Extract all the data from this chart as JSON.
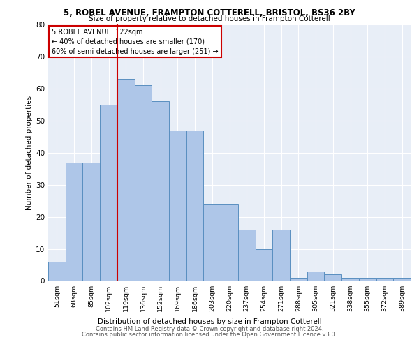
{
  "title1": "5, ROBEL AVENUE, FRAMPTON COTTERELL, BRISTOL, BS36 2BY",
  "title2": "Size of property relative to detached houses in Frampton Cotterell",
  "xlabel": "Distribution of detached houses by size in Frampton Cotterell",
  "ylabel": "Number of detached properties",
  "footer1": "Contains HM Land Registry data © Crown copyright and database right 2024.",
  "footer2": "Contains public sector information licensed under the Open Government Licence v3.0.",
  "categories": [
    "51sqm",
    "68sqm",
    "85sqm",
    "102sqm",
    "119sqm",
    "136sqm",
    "152sqm",
    "169sqm",
    "186sqm",
    "203sqm",
    "220sqm",
    "237sqm",
    "254sqm",
    "271sqm",
    "288sqm",
    "305sqm",
    "321sqm",
    "338sqm",
    "355sqm",
    "372sqm",
    "389sqm"
  ],
  "values": [
    6,
    37,
    37,
    55,
    63,
    61,
    56,
    47,
    47,
    24,
    24,
    16,
    10,
    16,
    1,
    3,
    2,
    1,
    1,
    1,
    1
  ],
  "bar_color": "#aec6e8",
  "bar_edge_color": "#5a8fc0",
  "background_color": "#e8eef7",
  "grid_color": "#ffffff",
  "annotation_line1": "5 ROBEL AVENUE: 122sqm",
  "annotation_line2": "← 40% of detached houses are smaller (170)",
  "annotation_line3": "60% of semi-detached houses are larger (251) →",
  "annotation_box_color": "#ffffff",
  "annotation_border_color": "#cc0000",
  "vline_color": "#cc0000",
  "ylim": [
    0,
    80
  ],
  "yticks": [
    0,
    10,
    20,
    30,
    40,
    50,
    60,
    70,
    80
  ],
  "vline_index": 4
}
